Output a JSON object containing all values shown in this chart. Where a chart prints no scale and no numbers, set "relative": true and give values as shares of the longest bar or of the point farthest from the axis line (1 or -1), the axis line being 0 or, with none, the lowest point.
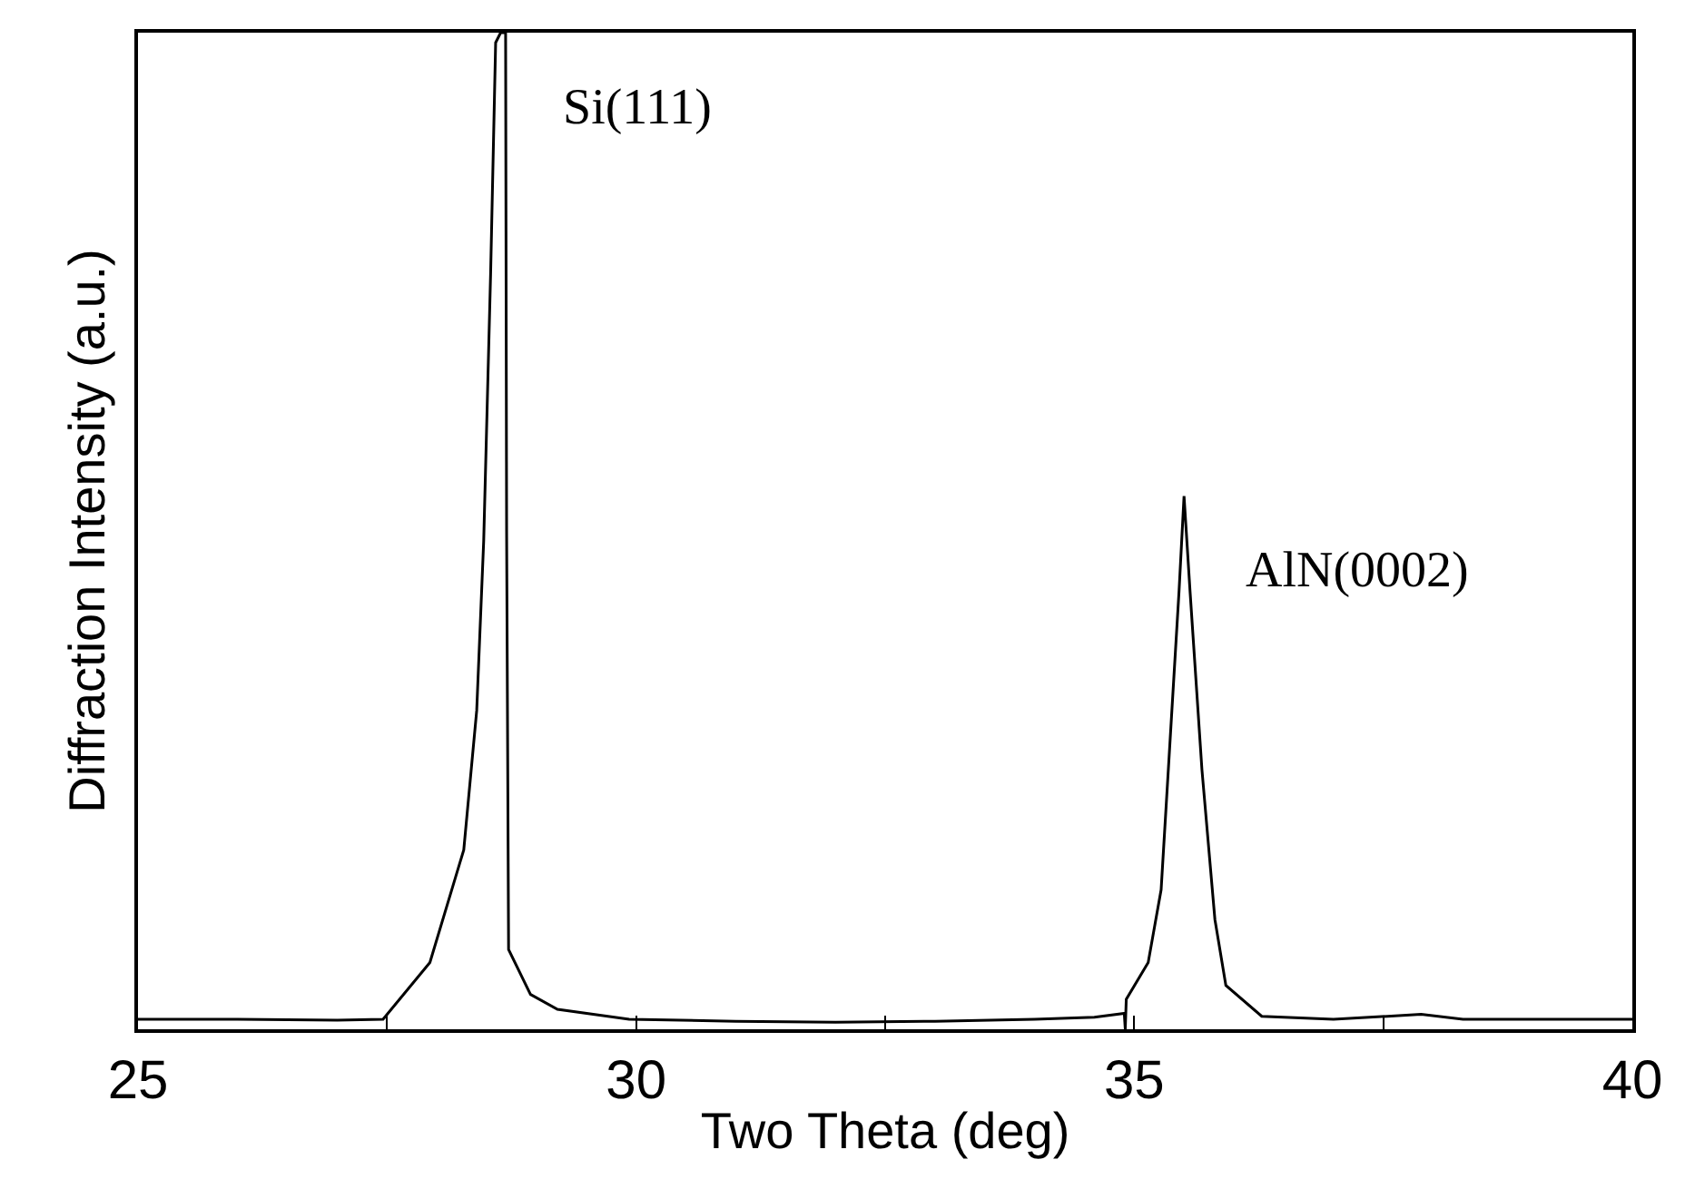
{
  "chart_data": {
    "type": "line",
    "relative": true,
    "xlabel": "Two Theta (deg)",
    "ylabel": "Diffraction Intensity (a.u.)",
    "xlim": [
      25,
      40
    ],
    "xticks": [
      25,
      {
        "value": 27.5,
        "label": null
      },
      30,
      {
        "value": 32.5,
        "label": null
      },
      35,
      {
        "value": 37.5,
        "label": null
      },
      40
    ],
    "marker": "none",
    "line_style": "solid",
    "annotations": [
      {
        "text": "Si(111)",
        "x": 28.64,
        "y": 1.0
      },
      {
        "text": "AlN(0002)",
        "x": 35.5,
        "y": 0.535
      }
    ],
    "series": [
      {
        "color": "#000000",
        "x": [
          25.0,
          26.0,
          27.0,
          27.46,
          27.93,
          28.27,
          28.4,
          28.47,
          28.54,
          28.59,
          28.64,
          28.69,
          28.7,
          28.72,
          28.94,
          29.21,
          29.93,
          31.0,
          32.0,
          33.0,
          34.0,
          34.6,
          34.9,
          34.91,
          34.92,
          35.14,
          35.27,
          35.36,
          35.45,
          35.5,
          35.56,
          35.68,
          35.81,
          35.92,
          36.28,
          37.0,
          37.88,
          38.3,
          39.0,
          40.0
        ],
        "values": [
          0.01,
          0.01,
          0.009,
          0.01,
          0.067,
          0.18,
          0.32,
          0.49,
          0.76,
          0.99,
          1.0,
          1.0,
          0.5,
          0.08,
          0.035,
          0.02,
          0.01,
          0.008,
          0.007,
          0.008,
          0.01,
          0.012,
          0.016,
          0.0,
          0.03,
          0.067,
          0.14,
          0.29,
          0.44,
          0.535,
          0.44,
          0.26,
          0.11,
          0.044,
          0.013,
          0.01,
          0.015,
          0.01,
          0.01,
          0.01
        ]
      }
    ]
  }
}
